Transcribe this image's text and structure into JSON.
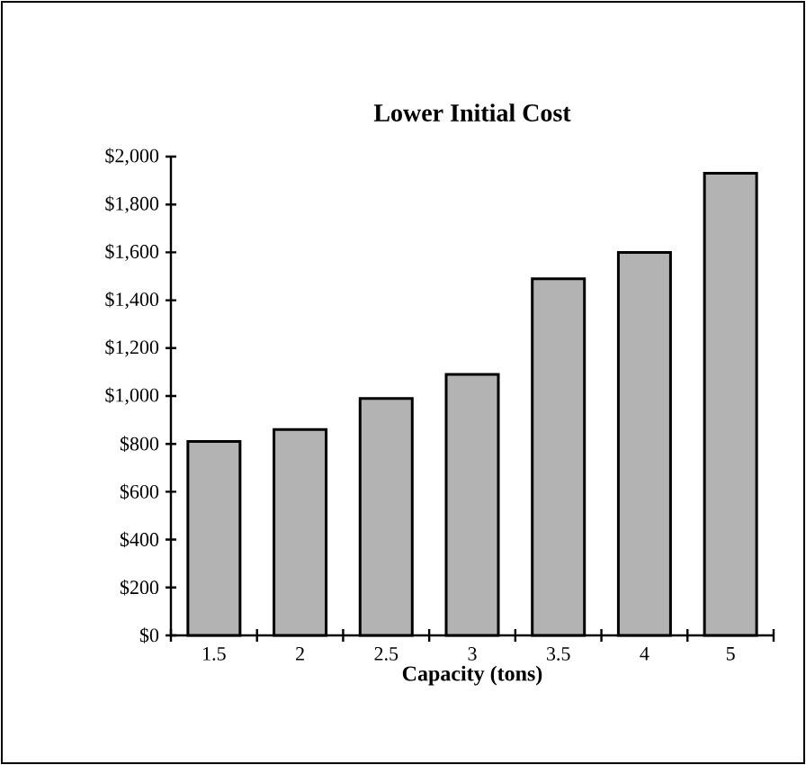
{
  "chart_data": {
    "type": "bar",
    "title": "Lower Initial Cost",
    "xlabel": "Capacity (tons)",
    "categories": [
      "1.5",
      "2",
      "2.5",
      "3",
      "3.5",
      "4",
      "5"
    ],
    "values": [
      810,
      860,
      990,
      1090,
      1490,
      1600,
      1930
    ],
    "color": "#b3b3b3",
    "ylim": [
      0,
      2000
    ],
    "yticks": [
      {
        "value": 0,
        "label": "$0"
      },
      {
        "value": 200,
        "label": "$200"
      },
      {
        "value": 400,
        "label": "$400"
      },
      {
        "value": 600,
        "label": "$600"
      },
      {
        "value": 800,
        "label": "$800"
      },
      {
        "value": 1000,
        "label": "$1,000"
      },
      {
        "value": 1200,
        "label": "$1,200"
      },
      {
        "value": 1400,
        "label": "$1,400"
      },
      {
        "value": 1600,
        "label": "$1,600"
      },
      {
        "value": 1800,
        "label": "$1,800"
      },
      {
        "value": 2000,
        "label": "$2,000"
      }
    ]
  }
}
